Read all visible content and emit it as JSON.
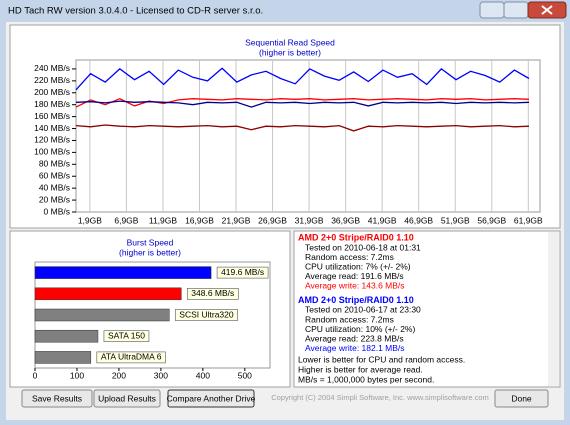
{
  "window": {
    "title": "HD Tach RW version 3.0.4.0 - Licensed to CD-R server s.r.o."
  },
  "chart_data": [
    {
      "type": "line",
      "title": "Sequential Read Speed",
      "subtitle": "(higher is better)",
      "x": [
        0,
        2,
        4,
        6,
        8,
        10,
        12,
        14,
        16,
        18,
        20,
        22,
        24,
        26,
        28,
        30,
        32,
        34,
        36,
        38,
        40,
        42,
        44,
        46,
        48,
        50,
        52,
        54,
        56,
        58,
        60,
        62
      ],
      "series": [
        {
          "color": "#0000ff",
          "values": [
            205,
            232,
            218,
            240,
            222,
            236,
            214,
            238,
            226,
            220,
            241,
            218,
            230,
            236,
            224,
            215,
            240,
            228,
            221,
            235,
            219,
            238,
            226,
            232,
            214,
            240,
            222,
            236,
            229,
            218,
            238,
            224
          ]
        },
        {
          "color": "#ff0000",
          "values": [
            176,
            188,
            180,
            190,
            178,
            186,
            182,
            188,
            190,
            189,
            188,
            190,
            189,
            188,
            190,
            189,
            190,
            188,
            189,
            190,
            188,
            189,
            190,
            189,
            188,
            190,
            189,
            190,
            188,
            189,
            190,
            189
          ]
        },
        {
          "color": "#00008b",
          "values": [
            184,
            185,
            183,
            186,
            184,
            185,
            184,
            183,
            180,
            184,
            183,
            184,
            176,
            184,
            183,
            184,
            182,
            184,
            183,
            184,
            178,
            184,
            183,
            184,
            183,
            184,
            182,
            184,
            183,
            184,
            183,
            184
          ]
        },
        {
          "color": "#8b0000",
          "values": [
            145,
            143,
            146,
            144,
            143,
            145,
            144,
            143,
            144,
            145,
            143,
            144,
            138,
            144,
            143,
            145,
            144,
            143,
            145,
            136,
            144,
            143,
            145,
            144,
            143,
            144,
            145,
            143,
            144,
            145,
            143,
            144
          ]
        }
      ],
      "xlim": [
        0,
        63.5
      ],
      "xticks": [
        {
          "value": 1.9,
          "label": "1,9GB"
        },
        {
          "value": 6.9,
          "label": "6,9GB"
        },
        {
          "value": 11.9,
          "label": "11,9GB"
        },
        {
          "value": 16.9,
          "label": "16,9GB"
        },
        {
          "value": 21.9,
          "label": "21,9GB"
        },
        {
          "value": 26.9,
          "label": "26,9GB"
        },
        {
          "value": 31.9,
          "label": "31,9GB"
        },
        {
          "value": 36.9,
          "label": "36,9GB"
        },
        {
          "value": 41.9,
          "label": "41,9GB"
        },
        {
          "value": 46.9,
          "label": "46,9GB"
        },
        {
          "value": 51.9,
          "label": "51,9GB"
        },
        {
          "value": 56.9,
          "label": "56,9GB"
        },
        {
          "value": 61.9,
          "label": "61,9GB"
        }
      ],
      "ylim": [
        0,
        255
      ],
      "yticks": [
        {
          "value": 0,
          "label": "0 MB/s"
        },
        {
          "value": 20,
          "label": "20 MB/s"
        },
        {
          "value": 40,
          "label": "40 MB/s"
        },
        {
          "value": 60,
          "label": "60 MB/s"
        },
        {
          "value": 80,
          "label": "80 MB/s"
        },
        {
          "value": 100,
          "label": "100 MB/s"
        },
        {
          "value": 120,
          "label": "120 MB/s"
        },
        {
          "value": 140,
          "label": "140 MB/s"
        },
        {
          "value": 160,
          "label": "160 MB/s"
        },
        {
          "value": 180,
          "label": "180 MB/s"
        },
        {
          "value": 200,
          "label": "200 MB/s"
        },
        {
          "value": 220,
          "label": "220 MB/s"
        },
        {
          "value": 240,
          "label": "240 MB/s"
        }
      ],
      "grid": true
    },
    {
      "type": "hbar",
      "title": "Burst Speed",
      "subtitle": "(higher is better)",
      "categories": [
        null,
        null,
        "SCSI Ultra320",
        "SATA 150",
        "ATA UltraDMA 6"
      ],
      "values": [
        419.6,
        348.6,
        320,
        150,
        133
      ],
      "value_labels": [
        "419.6 MB/s",
        "348.6 MB/s",
        null,
        null,
        null
      ],
      "colors": [
        "#0000ff",
        "#ff0000",
        "#808080",
        "#808080",
        "#808080"
      ],
      "xlim": [
        0,
        560
      ],
      "xticks": [
        0,
        100,
        200,
        300,
        400,
        500
      ]
    }
  ],
  "results": [
    {
      "title": "AMD 2+0 Stripe/RAID0 1.10",
      "color": "#ff0000",
      "lines": [
        "Tested on 2010-06-18 at 01:31",
        "Random access: 7.2ms",
        "CPU utilization: 7% (+/- 2%)",
        "Average read: 191.6 MB/s"
      ],
      "write": "Average write: 143.6 MB/s"
    },
    {
      "title": "AMD 2+0 Stripe/RAID0 1.10",
      "color": "#0000ff",
      "lines": [
        "Tested on 2010-06-17 at 23:30",
        "Random access: 7.2ms",
        "CPU utilization: 10% (+/- 2%)",
        "Average read: 223.8 MB/s"
      ],
      "write": "Average write: 182.1 MB/s"
    }
  ],
  "notes": [
    "Lower is better for CPU and random access.",
    "Higher is better for average read.",
    "MB/s = 1,000,000 bytes per second."
  ],
  "buttons": {
    "save": "Save Results",
    "upload": "Upload Results",
    "compare": "Compare Another Drive",
    "done": "Done"
  },
  "copyright": "Copyright (C) 2004 Simpli Software, Inc. www.simplisoftware.com"
}
